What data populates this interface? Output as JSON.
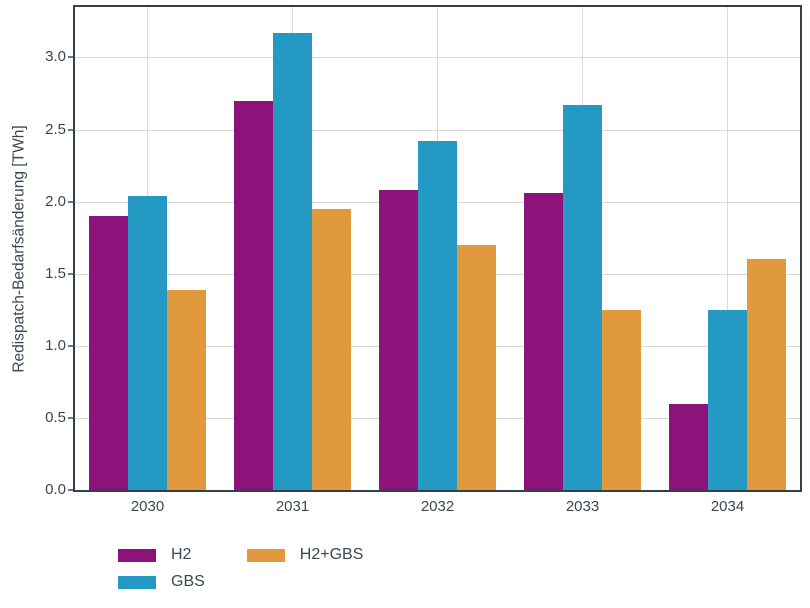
{
  "chart_data": {
    "type": "bar",
    "title": "",
    "categories": [
      "2030",
      "2031",
      "2032",
      "2033",
      "2034"
    ],
    "series": [
      {
        "name": "H2",
        "color": "#8C1379",
        "values": [
          1.9,
          2.7,
          2.08,
          2.06,
          0.6
        ]
      },
      {
        "name": "GBS",
        "color": "#2499C4",
        "values": [
          2.04,
          3.17,
          2.42,
          2.67,
          1.25
        ]
      },
      {
        "name": "H2+GBS",
        "color": "#E0993C",
        "values": [
          1.39,
          1.95,
          1.7,
          1.25,
          1.6
        ]
      }
    ],
    "xlabel": "",
    "ylabel": "Redispatch-Bedarfsänderung [TWh]",
    "ylim": [
      0,
      3.35
    ],
    "yticks": [
      0.0,
      0.5,
      1.0,
      1.5,
      2.0,
      2.5,
      3.0
    ],
    "grid": true,
    "legend_position": "bottom-left",
    "legend_labels": [
      "H2",
      "GBS",
      "H2+GBS"
    ]
  },
  "styles": {
    "frame_color": "#333F4D",
    "grid_color": "#D9D9DC",
    "text_color": "#3B4653",
    "background": "#FFFFFF"
  }
}
